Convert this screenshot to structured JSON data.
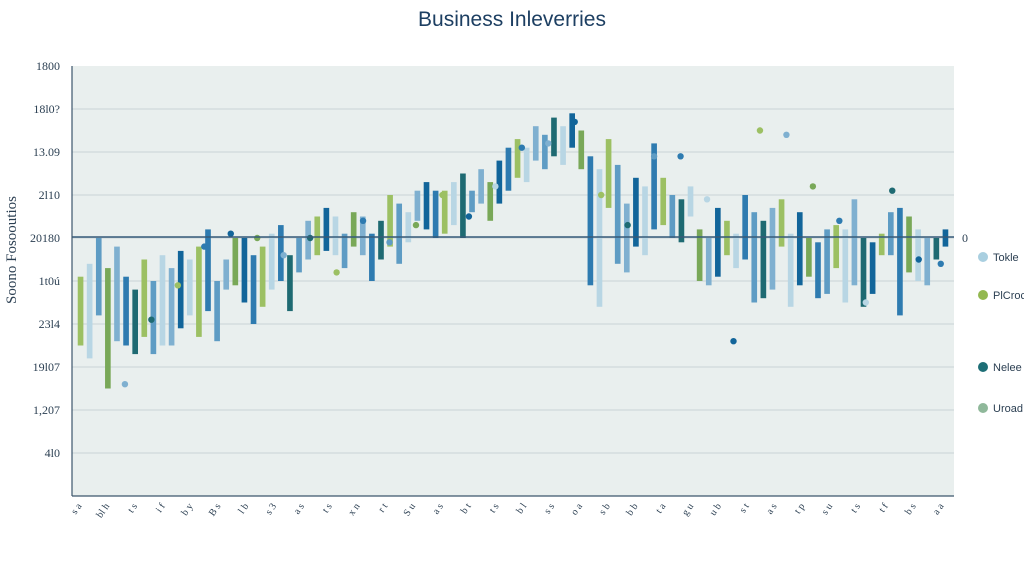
{
  "chart_data": {
    "type": "bar",
    "title": "Business Inleverries",
    "ylabel": "Soono Fosooutios",
    "yticks": [
      "1800",
      "18l0?",
      "13.09",
      "2l10",
      "20180",
      "1t0ú",
      "23l4",
      "19l07",
      "1,207",
      "4l0"
    ],
    "zero_tick": "0",
    "ylim": [
      0,
      10
    ],
    "baseline": 5.5,
    "xtick_labels": [
      "s a",
      "bl h",
      "t s",
      "i f",
      "b y",
      "B s",
      "l b",
      "s 3",
      "a s",
      "t s",
      "x n",
      "r t",
      "S u",
      "a s",
      "b t",
      "t s",
      "b l",
      "s s",
      "o a",
      "s b",
      "b b",
      "t a",
      "g u",
      "u b",
      "s t",
      "a s",
      "t p",
      "s u",
      "t s",
      "t f",
      "b s",
      "a a"
    ],
    "legend": [
      {
        "label": "Tokle",
        "color": "#a9cfe0"
      },
      {
        "label": "PlCroc",
        "color": "#93b850"
      },
      {
        "label": "Nelee",
        "color": "#1d6e76"
      },
      {
        "label": "Uroad",
        "color": "#8fb89a"
      }
    ],
    "colors": [
      "#2e7bb0",
      "#7fb0d0",
      "#1e6a72",
      "#9cc063",
      "#b8d6e4",
      "#12659a",
      "#5e9cc4",
      "#79a858"
    ],
    "bars": [
      {
        "top": 3.5,
        "bottom": 5.1,
        "color": 3
      },
      {
        "top": 3.2,
        "bottom": 5.4,
        "color": 4
      },
      {
        "top": 4.2,
        "bottom": 6.0,
        "color": 6
      },
      {
        "top": 2.5,
        "bottom": 5.3,
        "color": 7
      },
      {
        "top": 3.6,
        "bottom": 5.8,
        "color": 1
      },
      {
        "top": 3.5,
        "bottom": 5.1,
        "color": 0
      },
      {
        "top": 3.3,
        "bottom": 4.8,
        "color": 2
      },
      {
        "top": 3.7,
        "bottom": 5.5,
        "color": 3
      },
      {
        "top": 3.3,
        "bottom": 5.0,
        "color": 6
      },
      {
        "top": 3.5,
        "bottom": 5.6,
        "color": 4
      },
      {
        "top": 3.5,
        "bottom": 5.3,
        "color": 1
      },
      {
        "top": 3.9,
        "bottom": 5.7,
        "color": 5
      },
      {
        "top": 4.2,
        "bottom": 5.5,
        "color": 4
      },
      {
        "top": 3.7,
        "bottom": 5.8,
        "color": 3
      },
      {
        "top": 4.3,
        "bottom": 6.2,
        "color": 0
      },
      {
        "top": 3.6,
        "bottom": 5.0,
        "color": 6
      },
      {
        "top": 4.8,
        "bottom": 5.5,
        "color": 1
      },
      {
        "top": 4.9,
        "bottom": 6.0,
        "color": 7
      },
      {
        "top": 4.5,
        "bottom": 6.0,
        "color": 5
      },
      {
        "top": 4.0,
        "bottom": 5.6,
        "color": 0
      },
      {
        "top": 4.4,
        "bottom": 5.8,
        "color": 3
      },
      {
        "top": 4.8,
        "bottom": 6.1,
        "color": 4
      },
      {
        "top": 5.0,
        "bottom": 6.3,
        "color": 0
      },
      {
        "top": 4.3,
        "bottom": 5.6,
        "color": 2
      },
      {
        "top": 5.2,
        "bottom": 6.0,
        "color": 6
      },
      {
        "top": 5.5,
        "bottom": 6.4,
        "color": 1
      },
      {
        "top": 5.6,
        "bottom": 6.5,
        "color": 3
      },
      {
        "top": 5.7,
        "bottom": 6.7,
        "color": 5
      },
      {
        "top": 5.6,
        "bottom": 6.5,
        "color": 4
      },
      {
        "top": 5.3,
        "bottom": 6.1,
        "color": 6
      },
      {
        "top": 5.8,
        "bottom": 6.6,
        "color": 7
      },
      {
        "top": 5.6,
        "bottom": 6.5,
        "color": 1
      },
      {
        "top": 5.0,
        "bottom": 6.1,
        "color": 0
      },
      {
        "top": 5.5,
        "bottom": 6.4,
        "color": 2
      },
      {
        "top": 5.8,
        "bottom": 7.0,
        "color": 3
      },
      {
        "top": 5.4,
        "bottom": 6.8,
        "color": 6
      },
      {
        "top": 5.9,
        "bottom": 6.6,
        "color": 4
      },
      {
        "top": 6.4,
        "bottom": 7.1,
        "color": 1
      },
      {
        "top": 6.2,
        "bottom": 7.3,
        "color": 5
      },
      {
        "top": 6.0,
        "bottom": 7.1,
        "color": 0
      },
      {
        "top": 6.1,
        "bottom": 7.1,
        "color": 3
      },
      {
        "top": 6.3,
        "bottom": 7.3,
        "color": 4
      },
      {
        "top": 6.0,
        "bottom": 7.5,
        "color": 2
      },
      {
        "top": 6.6,
        "bottom": 7.1,
        "color": 6
      },
      {
        "top": 6.8,
        "bottom": 7.6,
        "color": 1
      },
      {
        "top": 6.4,
        "bottom": 7.3,
        "color": 7
      },
      {
        "top": 6.8,
        "bottom": 7.8,
        "color": 5
      },
      {
        "top": 7.1,
        "bottom": 8.1,
        "color": 0
      },
      {
        "top": 7.4,
        "bottom": 8.3,
        "color": 3
      },
      {
        "top": 7.3,
        "bottom": 8.1,
        "color": 4
      },
      {
        "top": 7.8,
        "bottom": 8.6,
        "color": 1
      },
      {
        "top": 7.6,
        "bottom": 8.4,
        "color": 6
      },
      {
        "top": 7.9,
        "bottom": 8.8,
        "color": 2
      },
      {
        "top": 7.7,
        "bottom": 8.6,
        "color": 4
      },
      {
        "top": 8.1,
        "bottom": 8.9,
        "color": 5
      },
      {
        "top": 7.6,
        "bottom": 8.5,
        "color": 7
      },
      {
        "top": 4.9,
        "bottom": 7.9,
        "color": 0
      },
      {
        "top": 4.4,
        "bottom": 7.6,
        "color": 4
      },
      {
        "top": 6.7,
        "bottom": 8.3,
        "color": 3
      },
      {
        "top": 5.4,
        "bottom": 7.7,
        "color": 6
      },
      {
        "top": 5.2,
        "bottom": 6.8,
        "color": 1
      },
      {
        "top": 5.8,
        "bottom": 7.4,
        "color": 5
      },
      {
        "top": 5.6,
        "bottom": 7.2,
        "color": 4
      },
      {
        "top": 6.2,
        "bottom": 8.2,
        "color": 0
      },
      {
        "top": 6.3,
        "bottom": 7.4,
        "color": 3
      },
      {
        "top": 6.0,
        "bottom": 7.0,
        "color": 6
      },
      {
        "top": 5.9,
        "bottom": 6.9,
        "color": 2
      },
      {
        "top": 6.5,
        "bottom": 7.2,
        "color": 4
      },
      {
        "top": 5.0,
        "bottom": 6.2,
        "color": 7
      },
      {
        "top": 4.9,
        "bottom": 6.0,
        "color": 1
      },
      {
        "top": 5.1,
        "bottom": 6.7,
        "color": 5
      },
      {
        "top": 5.6,
        "bottom": 6.4,
        "color": 3
      },
      {
        "top": 5.3,
        "bottom": 6.1,
        "color": 4
      },
      {
        "top": 5.5,
        "bottom": 7.0,
        "color": 0
      },
      {
        "top": 4.5,
        "bottom": 6.6,
        "color": 6
      },
      {
        "top": 4.6,
        "bottom": 6.4,
        "color": 2
      },
      {
        "top": 4.8,
        "bottom": 6.7,
        "color": 1
      },
      {
        "top": 5.8,
        "bottom": 6.9,
        "color": 3
      },
      {
        "top": 4.4,
        "bottom": 6.1,
        "color": 4
      },
      {
        "top": 4.9,
        "bottom": 6.6,
        "color": 5
      },
      {
        "top": 5.1,
        "bottom": 6.0,
        "color": 7
      },
      {
        "top": 4.6,
        "bottom": 5.9,
        "color": 0
      },
      {
        "top": 4.7,
        "bottom": 6.2,
        "color": 6
      },
      {
        "top": 5.3,
        "bottom": 6.3,
        "color": 3
      },
      {
        "top": 4.5,
        "bottom": 6.2,
        "color": 4
      },
      {
        "top": 4.9,
        "bottom": 6.9,
        "color": 1
      },
      {
        "top": 4.4,
        "bottom": 6.0,
        "color": 2
      },
      {
        "top": 4.7,
        "bottom": 5.9,
        "color": 5
      },
      {
        "top": 5.6,
        "bottom": 6.1,
        "color": 3
      },
      {
        "top": 5.6,
        "bottom": 6.6,
        "color": 6
      },
      {
        "top": 4.2,
        "bottom": 6.7,
        "color": 0
      },
      {
        "top": 5.2,
        "bottom": 6.5,
        "color": 7
      },
      {
        "top": 5.0,
        "bottom": 6.2,
        "color": 4
      },
      {
        "top": 4.9,
        "bottom": 6.0,
        "color": 1
      },
      {
        "top": 5.5,
        "bottom": 6.0,
        "color": 2
      },
      {
        "top": 5.8,
        "bottom": 6.2,
        "color": 5
      }
    ],
    "dots": [
      {
        "x": 0.06,
        "y": 2.6,
        "color": 1
      },
      {
        "x": 0.09,
        "y": 4.1,
        "color": 2
      },
      {
        "x": 0.12,
        "y": 4.9,
        "color": 3
      },
      {
        "x": 0.15,
        "y": 5.8,
        "color": 0
      },
      {
        "x": 0.18,
        "y": 6.1,
        "color": 5
      },
      {
        "x": 0.21,
        "y": 6.0,
        "color": 7
      },
      {
        "x": 0.24,
        "y": 5.6,
        "color": 1
      },
      {
        "x": 0.27,
        "y": 6.0,
        "color": 2
      },
      {
        "x": 0.3,
        "y": 5.2,
        "color": 3
      },
      {
        "x": 0.33,
        "y": 6.4,
        "color": 0
      },
      {
        "x": 0.36,
        "y": 5.9,
        "color": 6
      },
      {
        "x": 0.39,
        "y": 6.3,
        "color": 7
      },
      {
        "x": 0.42,
        "y": 7.0,
        "color": 3
      },
      {
        "x": 0.45,
        "y": 6.5,
        "color": 5
      },
      {
        "x": 0.48,
        "y": 7.2,
        "color": 4
      },
      {
        "x": 0.51,
        "y": 8.1,
        "color": 0
      },
      {
        "x": 0.54,
        "y": 8.2,
        "color": 1
      },
      {
        "x": 0.57,
        "y": 8.7,
        "color": 5
      },
      {
        "x": 0.6,
        "y": 7.0,
        "color": 3
      },
      {
        "x": 0.63,
        "y": 6.3,
        "color": 2
      },
      {
        "x": 0.66,
        "y": 7.9,
        "color": 6
      },
      {
        "x": 0.69,
        "y": 7.9,
        "color": 0
      },
      {
        "x": 0.72,
        "y": 6.9,
        "color": 4
      },
      {
        "x": 0.75,
        "y": 3.6,
        "color": 5
      },
      {
        "x": 0.78,
        "y": 8.5,
        "color": 3
      },
      {
        "x": 0.81,
        "y": 8.4,
        "color": 1
      },
      {
        "x": 0.84,
        "y": 7.2,
        "color": 7
      },
      {
        "x": 0.87,
        "y": 6.4,
        "color": 0
      },
      {
        "x": 0.9,
        "y": 4.5,
        "color": 4
      },
      {
        "x": 0.93,
        "y": 7.1,
        "color": 2
      },
      {
        "x": 0.96,
        "y": 5.5,
        "color": 5
      },
      {
        "x": 0.985,
        "y": 5.4,
        "color": 0
      }
    ],
    "grid": true,
    "legend_position": "right"
  }
}
